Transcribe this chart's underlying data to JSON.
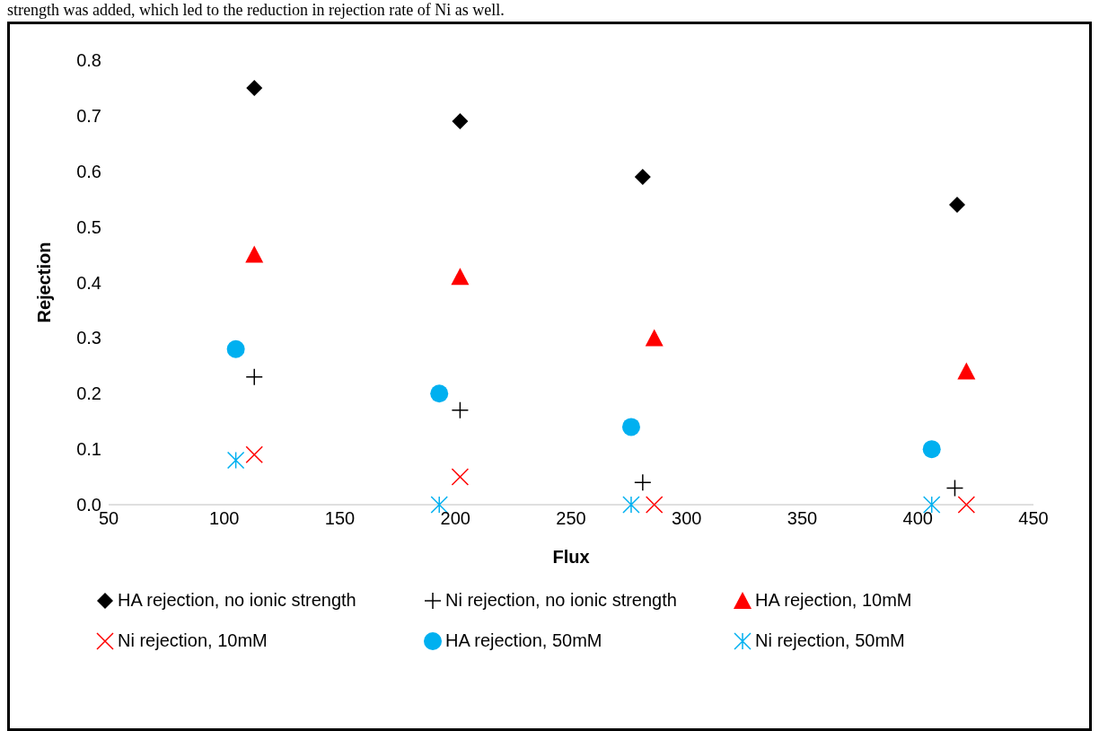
{
  "chart_data": {
    "type": "scatter",
    "xlabel": "Flux",
    "ylabel": "Rejection",
    "annotations": [
      "strength was added, which led to the reduction in rejection rate of Ni as well."
    ],
    "xlim": [
      50,
      450
    ],
    "xticks": [
      50,
      100,
      150,
      200,
      250,
      300,
      350,
      400,
      450
    ],
    "ylim": [
      0,
      0.8
    ],
    "yticks": [
      {
        "value": 0,
        "label": "0.0"
      },
      0.1,
      0.2,
      0.3,
      0.4,
      0.5,
      0.6,
      0.7,
      0.8
    ],
    "grid": false,
    "legend": "bottom",
    "series": [
      {
        "name": "HA rejection, no ionic strength",
        "color": "#000000",
        "marker": "diamond",
        "x": [
          113,
          202,
          281,
          417
        ],
        "values": [
          0.75,
          0.69,
          0.59,
          0.54
        ]
      },
      {
        "name": "Ni rejection, no ionic strength",
        "color": "#000000",
        "marker": "plus",
        "x": [
          113,
          202,
          281,
          416
        ],
        "values": [
          0.23,
          0.17,
          0.04,
          0.03
        ]
      },
      {
        "name": "HA rejection, 10mM",
        "color": "#ff0000",
        "marker": "triangle",
        "x": [
          113,
          202,
          286,
          421
        ],
        "values": [
          0.45,
          0.41,
          0.3,
          0.24
        ]
      },
      {
        "name": "Ni rejection, 10mM",
        "color": "#ff0000",
        "marker": "cross",
        "x": [
          113,
          202,
          286,
          421
        ],
        "values": [
          0.09,
          0.05,
          0,
          0
        ]
      },
      {
        "name": "HA rejection, 50mM",
        "color": "#00b0f0",
        "marker": "circle",
        "x": [
          105,
          193,
          276,
          406
        ],
        "values": [
          0.28,
          0.2,
          0.14,
          0.1
        ]
      },
      {
        "name": "Ni rejection, 50mM",
        "color": "#00b0f0",
        "x": [
          105,
          193,
          276,
          406
        ],
        "values": [
          0.08,
          0,
          0,
          0
        ]
      }
    ]
  }
}
